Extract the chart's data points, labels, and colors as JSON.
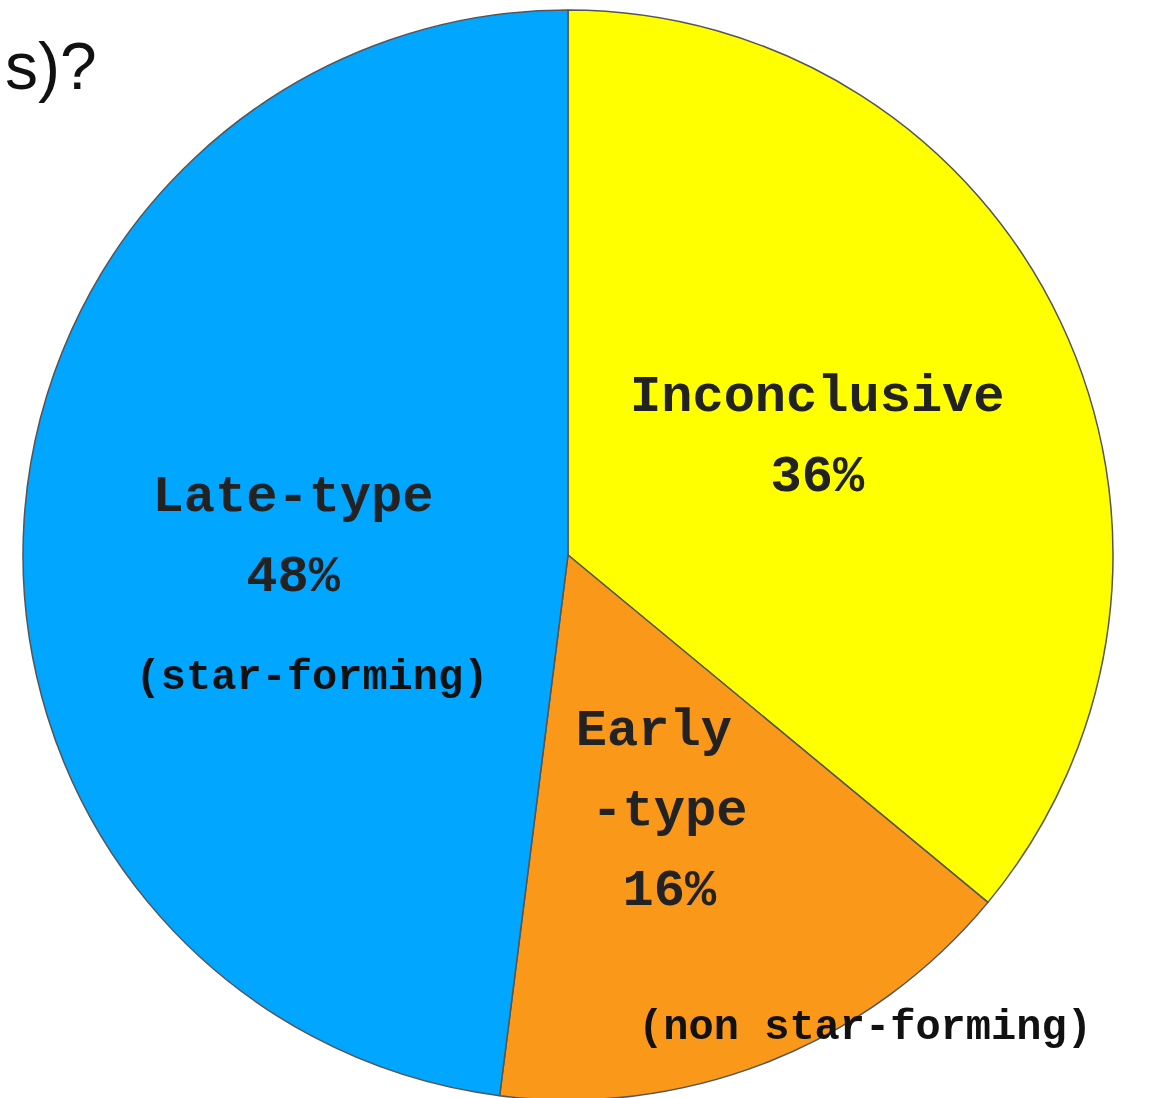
{
  "chart_data": {
    "type": "pie",
    "title": "s)?",
    "categories": [
      "Inconclusive",
      "Early -type",
      "Late-type"
    ],
    "values": [
      36,
      16,
      48
    ],
    "value_labels": [
      "36%",
      "16%",
      "48%"
    ],
    "colors": [
      "#ffff00",
      "#fa9819",
      "#00a6ff"
    ],
    "annotations": [
      "(non star-forming)",
      "(star-forming)"
    ],
    "legend": false
  }
}
